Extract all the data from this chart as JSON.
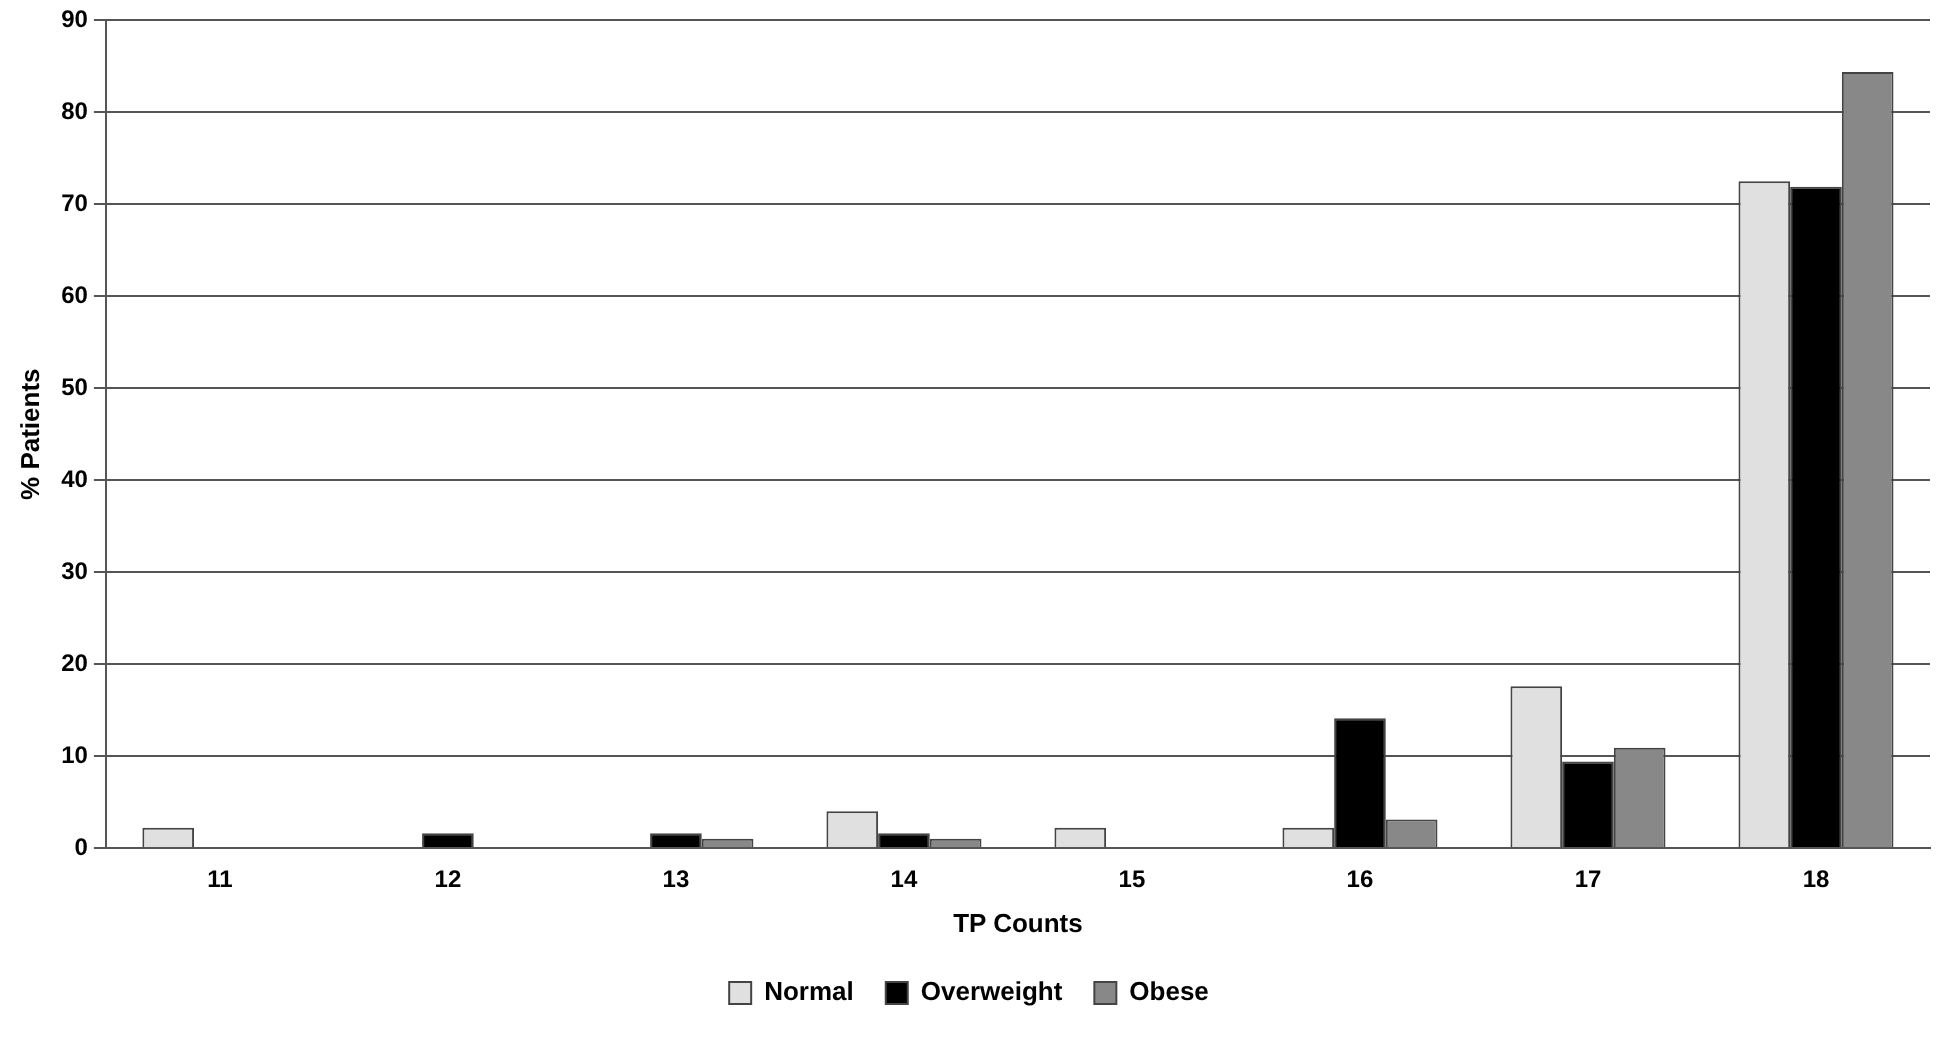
{
  "chart_data": {
    "type": "bar",
    "xlabel": "TP Counts",
    "ylabel": "% Patients",
    "categories": [
      "11",
      "12",
      "13",
      "14",
      "15",
      "16",
      "17",
      "18"
    ],
    "series": [
      {
        "name": "Normal",
        "color": "#e0e0e0",
        "values": [
          2.2,
          0,
          0,
          4.0,
          2.2,
          2.2,
          17.6,
          72.5
        ]
      },
      {
        "name": "Overweight",
        "color": "#000000",
        "values": [
          0,
          1.6,
          1.6,
          1.6,
          0,
          14.1,
          9.4,
          71.9
        ]
      },
      {
        "name": "Obese",
        "color": "#888888",
        "values": [
          0,
          0,
          1.0,
          1.0,
          0,
          3.1,
          10.9,
          84.4
        ]
      }
    ],
    "ylim": [
      0,
      90
    ],
    "yticks": [
      0,
      10,
      20,
      30,
      40,
      50,
      60,
      70,
      80,
      90
    ],
    "grid": "y",
    "legend": "bottom"
  }
}
